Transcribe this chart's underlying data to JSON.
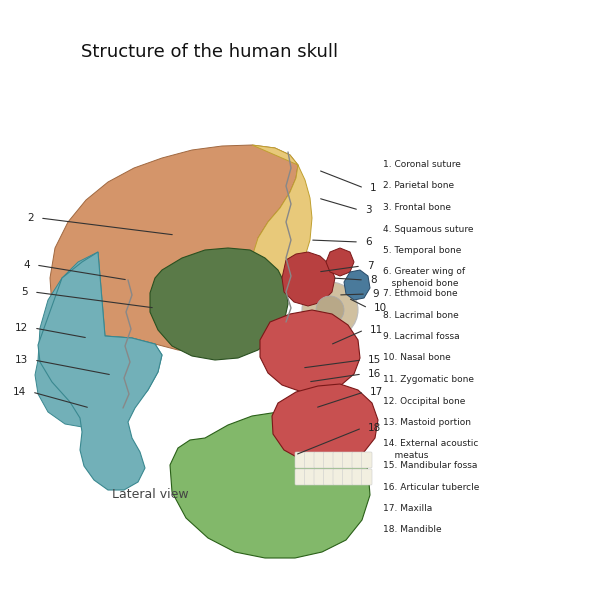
{
  "title": "Structure of the human skull",
  "lateral_view": "Lateral view",
  "background": "#ffffff",
  "legend": [
    "1. Coronal suture",
    "2. Parietal bone",
    "3. Frontal bone",
    "4. Squamous suture",
    "5. Temporal bone",
    "6. Greater wing of\n   sphenoid bone",
    "7. Ethmoid bone",
    "8. Lacrimal bone",
    "9. Lacrimal fossa",
    "10. Nasal bone",
    "11. Zygomatic bone",
    "12. Occipital bone",
    "13. Mastoid portion",
    "14. External acoustic\n    meatus",
    "15. Mandibular fossa",
    "16. Articular tubercle",
    "17. Maxilla",
    "18. Mandible"
  ],
  "colors": {
    "parietal": "#D4956A",
    "frontal": "#E8C97A",
    "temporal": "#72B0B8",
    "sphenoid": "#5A7A48",
    "ethmoid": "#B84040",
    "nasal_b": "#4A7A9B",
    "zygomatic": "#C85050",
    "maxilla": "#C85050",
    "mandible": "#82B86A",
    "teeth": "#F2EFE0",
    "eye_outer": "#D0C0A0",
    "eye_inner": "#B8A888",
    "suture": "#888888",
    "line": "#333333",
    "text": "#222222"
  },
  "right_labels": [
    [
      1,
      318,
      170,
      370,
      188
    ],
    [
      3,
      318,
      198,
      365,
      210
    ],
    [
      6,
      310,
      240,
      365,
      242
    ],
    [
      7,
      318,
      272,
      367,
      266
    ],
    [
      8,
      332,
      278,
      370,
      280
    ],
    [
      9,
      338,
      295,
      372,
      294
    ],
    [
      10,
      348,
      298,
      374,
      308
    ],
    [
      11,
      330,
      345,
      370,
      330
    ],
    [
      15,
      302,
      368,
      368,
      360
    ],
    [
      16,
      308,
      382,
      368,
      374
    ],
    [
      17,
      315,
      408,
      370,
      392
    ],
    [
      18,
      295,
      455,
      368,
      428
    ]
  ],
  "left_labels": [
    [
      2,
      175,
      235,
      30,
      218
    ],
    [
      4,
      128,
      280,
      26,
      265
    ],
    [
      5,
      155,
      308,
      24,
      292
    ],
    [
      12,
      88,
      338,
      24,
      328
    ],
    [
      13,
      112,
      375,
      24,
      360
    ],
    [
      14,
      90,
      408,
      22,
      392
    ]
  ]
}
